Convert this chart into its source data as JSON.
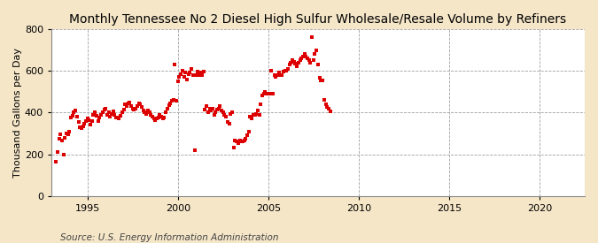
{
  "title": "Monthly Tennessee No 2 Diesel High Sulfur Wholesale/Resale Volume by Refiners",
  "ylabel": "Thousand Gallons per Day",
  "source": "Source: U.S. Energy Information Administration",
  "background_color": "#f5e6c8",
  "plot_background": "#ffffff",
  "marker_color": "#dd0000",
  "marker_size": 3.5,
  "xlim": [
    1993.0,
    2022.5
  ],
  "ylim": [
    0,
    800
  ],
  "yticks": [
    0,
    200,
    400,
    600,
    800
  ],
  "xticks": [
    1995,
    2000,
    2005,
    2010,
    2015,
    2020
  ],
  "title_fontsize": 10,
  "ylabel_fontsize": 8,
  "source_fontsize": 7.5,
  "dates": [
    1993.25,
    1993.33,
    1993.42,
    1993.5,
    1993.58,
    1993.67,
    1993.75,
    1993.83,
    1993.92,
    1994.0,
    1994.08,
    1994.17,
    1994.25,
    1994.33,
    1994.42,
    1994.5,
    1994.58,
    1994.67,
    1994.75,
    1994.83,
    1994.92,
    1995.0,
    1995.08,
    1995.17,
    1995.25,
    1995.33,
    1995.42,
    1995.5,
    1995.58,
    1995.67,
    1995.75,
    1995.83,
    1995.92,
    1996.0,
    1996.08,
    1996.17,
    1996.25,
    1996.33,
    1996.42,
    1996.5,
    1996.58,
    1996.67,
    1996.75,
    1996.83,
    1996.92,
    1997.0,
    1997.08,
    1997.17,
    1997.25,
    1997.33,
    1997.42,
    1997.5,
    1997.58,
    1997.67,
    1997.75,
    1997.83,
    1997.92,
    1998.0,
    1998.08,
    1998.17,
    1998.25,
    1998.33,
    1998.42,
    1998.5,
    1998.58,
    1998.67,
    1998.75,
    1998.83,
    1998.92,
    1999.0,
    1999.08,
    1999.17,
    1999.25,
    1999.33,
    1999.42,
    1999.5,
    1999.58,
    1999.67,
    1999.75,
    1999.83,
    1999.92,
    2000.0,
    2000.08,
    2000.17,
    2000.25,
    2000.33,
    2000.42,
    2000.5,
    2000.58,
    2000.67,
    2000.75,
    2000.83,
    2000.92,
    2001.0,
    2001.08,
    2001.17,
    2001.25,
    2001.33,
    2001.42,
    2001.5,
    2001.58,
    2001.67,
    2001.75,
    2001.83,
    2001.92,
    2002.0,
    2002.08,
    2002.17,
    2002.25,
    2002.33,
    2002.42,
    2002.5,
    2002.58,
    2002.67,
    2002.75,
    2002.83,
    2002.92,
    2003.0,
    2003.08,
    2003.17,
    2003.25,
    2003.33,
    2003.42,
    2003.5,
    2003.58,
    2003.67,
    2003.75,
    2003.83,
    2003.92,
    2004.0,
    2004.08,
    2004.17,
    2004.25,
    2004.33,
    2004.42,
    2004.5,
    2004.58,
    2004.67,
    2004.75,
    2004.83,
    2004.92,
    2005.0,
    2005.08,
    2005.17,
    2005.25,
    2005.33,
    2005.42,
    2005.5,
    2005.58,
    2005.67,
    2005.75,
    2005.83,
    2005.92,
    2006.0,
    2006.08,
    2006.17,
    2006.25,
    2006.33,
    2006.42,
    2006.5,
    2006.58,
    2006.67,
    2006.75,
    2006.83,
    2006.92,
    2007.0,
    2007.08,
    2007.17,
    2007.25,
    2007.33,
    2007.42,
    2007.5,
    2007.58,
    2007.67,
    2007.75,
    2007.83,
    2007.92,
    2008.0,
    2008.08,
    2008.17,
    2008.25,
    2008.33,
    2008.42
  ],
  "values": [
    165,
    210,
    275,
    295,
    265,
    200,
    280,
    300,
    295,
    310,
    375,
    385,
    400,
    410,
    380,
    355,
    330,
    325,
    335,
    345,
    360,
    370,
    365,
    340,
    360,
    390,
    400,
    385,
    360,
    375,
    390,
    400,
    415,
    420,
    390,
    400,
    380,
    395,
    405,
    390,
    375,
    375,
    370,
    385,
    400,
    415,
    440,
    430,
    445,
    450,
    430,
    420,
    415,
    420,
    430,
    445,
    440,
    425,
    410,
    400,
    395,
    410,
    400,
    390,
    380,
    370,
    365,
    370,
    375,
    390,
    380,
    370,
    375,
    400,
    420,
    435,
    445,
    455,
    460,
    630,
    455,
    550,
    570,
    585,
    600,
    570,
    590,
    560,
    585,
    590,
    610,
    580,
    220,
    580,
    595,
    580,
    590,
    580,
    595,
    415,
    430,
    400,
    420,
    410,
    420,
    390,
    400,
    415,
    420,
    430,
    410,
    400,
    390,
    380,
    355,
    345,
    395,
    400,
    230,
    265,
    260,
    255,
    265,
    260,
    260,
    265,
    275,
    290,
    310,
    380,
    370,
    390,
    390,
    395,
    410,
    390,
    440,
    480,
    490,
    500,
    490,
    490,
    490,
    600,
    490,
    580,
    570,
    580,
    590,
    580,
    580,
    595,
    600,
    600,
    610,
    630,
    640,
    650,
    645,
    635,
    620,
    640,
    650,
    660,
    670,
    680,
    670,
    660,
    650,
    640,
    760,
    650,
    680,
    700,
    630,
    565,
    555,
    555,
    460,
    440,
    425,
    420,
    405
  ]
}
